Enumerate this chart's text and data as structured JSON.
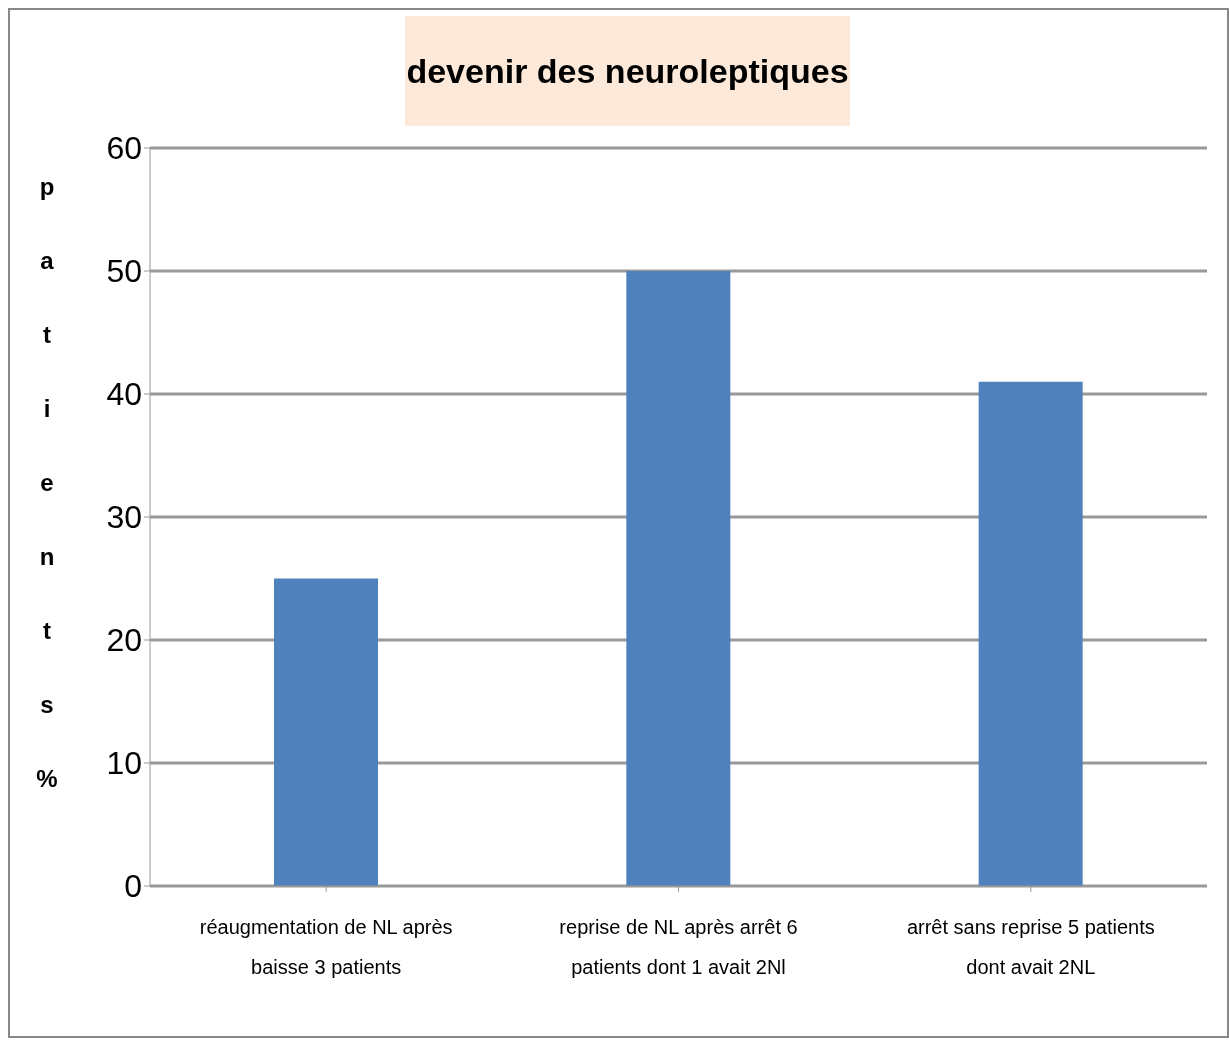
{
  "chart_data": {
    "type": "bar",
    "title": "devenir des neuroleptiques",
    "ylabel": "patients %",
    "categories": [
      "réaugmentation de NL après baisse 3 patients",
      "reprise de NL après arrêt 6 patients dont 1 avait 2Nl",
      "arrêt sans reprise 5 patients dont avait 2NL"
    ],
    "values": [
      25,
      50,
      41
    ],
    "color": "#4f81bd",
    "ylim": [
      0,
      60
    ],
    "yticks": [
      0,
      10,
      20,
      30,
      40,
      50,
      60
    ],
    "grid": "y"
  }
}
